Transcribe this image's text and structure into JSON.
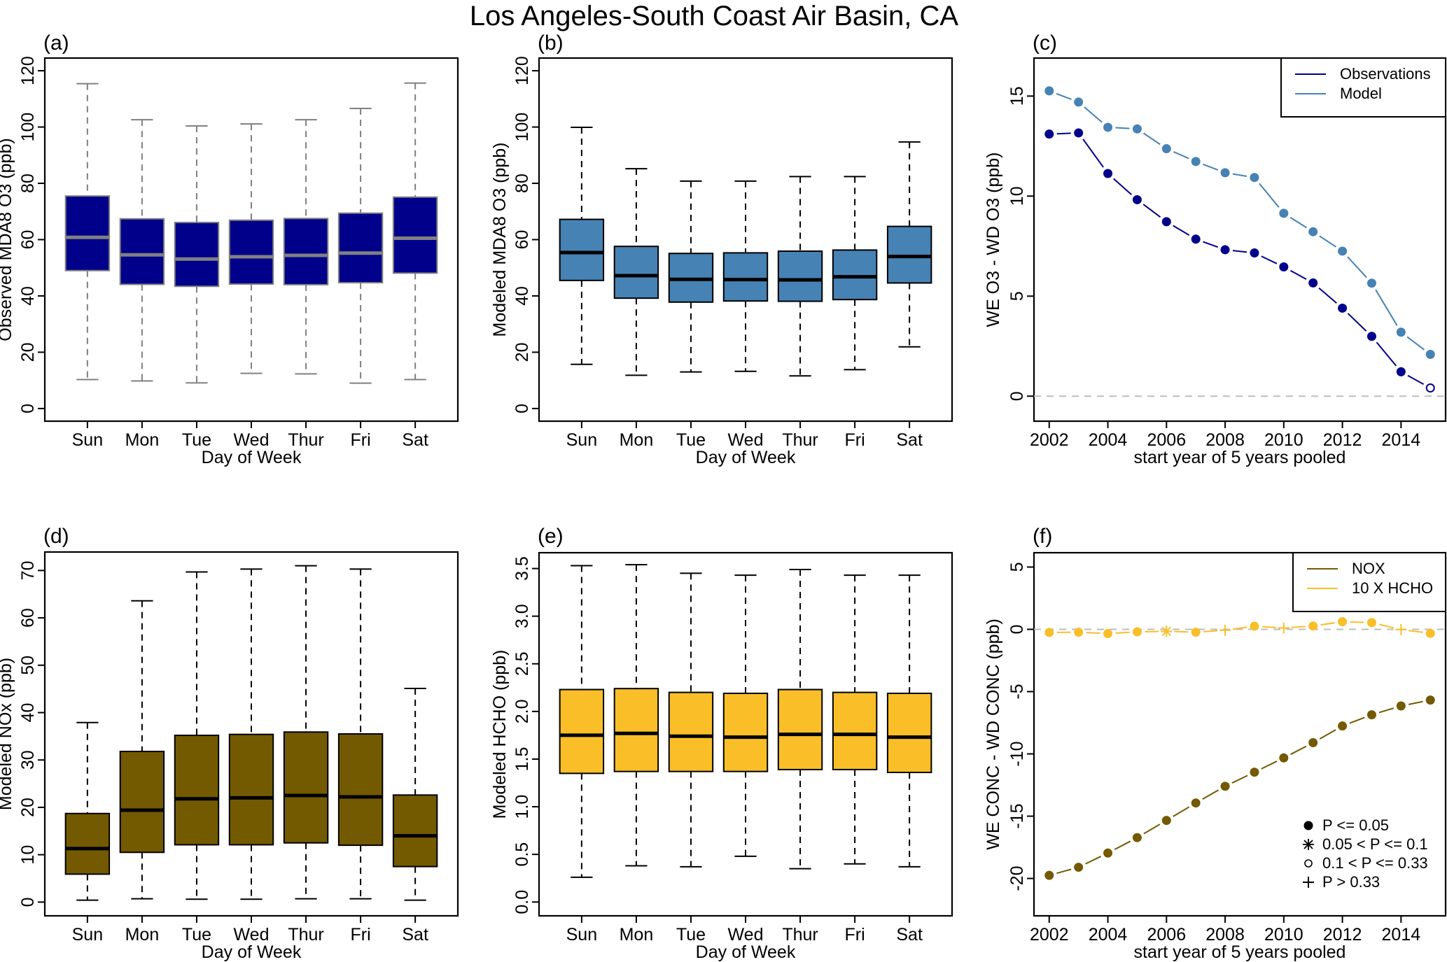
{
  "figure": {
    "title": "Los Angeles-South Coast Air Basin, CA"
  },
  "chart_data": [
    {
      "panel": "(a)",
      "type": "box",
      "title": "",
      "xlabel": "Day of Week",
      "ylabel": "Observed MDA8 O3 (ppb)",
      "categories": [
        "Sun",
        "Mon",
        "Tue",
        "Wed",
        "Thur",
        "Fri",
        "Sat"
      ],
      "yticks": [
        0,
        20,
        40,
        60,
        80,
        100,
        120
      ],
      "ylim": [
        -4.5,
        124.5
      ],
      "box_fill": "#00008B",
      "line_color": "#808080",
      "median_color": "#808080",
      "whisker_style": "dashed",
      "boxes": [
        {
          "whisker_low": 10.3,
          "q1": 49.0,
          "median": 60.8,
          "q3": 75.5,
          "whisker_high": 115.4
        },
        {
          "whisker_low": 9.8,
          "q1": 44.1,
          "median": 54.6,
          "q3": 67.4,
          "whisker_high": 102.6
        },
        {
          "whisker_low": 9.1,
          "q1": 43.4,
          "median": 53.1,
          "q3": 66.1,
          "whisker_high": 100.4
        },
        {
          "whisker_low": 12.5,
          "q1": 44.2,
          "median": 53.9,
          "q3": 66.9,
          "whisker_high": 101.1
        },
        {
          "whisker_low": 12.3,
          "q1": 44.0,
          "median": 54.4,
          "q3": 67.5,
          "whisker_high": 102.6
        },
        {
          "whisker_low": 9.0,
          "q1": 44.7,
          "median": 55.2,
          "q3": 69.4,
          "whisker_high": 106.6
        },
        {
          "whisker_low": 10.3,
          "q1": 48.1,
          "median": 60.5,
          "q3": 75.1,
          "whisker_high": 115.6
        }
      ]
    },
    {
      "panel": "(b)",
      "type": "box",
      "title": "",
      "xlabel": "Day of Week",
      "ylabel": "Modeled MDA8 O3 (ppb)",
      "categories": [
        "Sun",
        "Mon",
        "Tue",
        "Wed",
        "Thur",
        "Fri",
        "Sat"
      ],
      "yticks": [
        0,
        20,
        40,
        60,
        80,
        100,
        120
      ],
      "ylim": [
        -4.5,
        124.5
      ],
      "box_fill": "#4682B4",
      "line_color": "#000000",
      "median_color": "#000000",
      "whisker_style": "dashed",
      "boxes": [
        {
          "whisker_low": 15.7,
          "q1": 45.5,
          "median": 55.4,
          "q3": 67.2,
          "whisker_high": 99.9
        },
        {
          "whisker_low": 11.8,
          "q1": 39.2,
          "median": 47.2,
          "q3": 57.6,
          "whisker_high": 85.2
        },
        {
          "whisker_low": 13.0,
          "q1": 37.8,
          "median": 45.9,
          "q3": 55.1,
          "whisker_high": 80.8
        },
        {
          "whisker_low": 13.2,
          "q1": 38.2,
          "median": 45.8,
          "q3": 55.3,
          "whisker_high": 80.8
        },
        {
          "whisker_low": 11.6,
          "q1": 38.1,
          "median": 45.7,
          "q3": 55.9,
          "whisker_high": 82.4
        },
        {
          "whisker_low": 13.8,
          "q1": 38.7,
          "median": 46.8,
          "q3": 56.3,
          "whisker_high": 82.4
        },
        {
          "whisker_low": 21.9,
          "q1": 44.6,
          "median": 54.0,
          "q3": 64.7,
          "whisker_high": 94.7
        }
      ]
    },
    {
      "panel": "(c)",
      "type": "line",
      "title": "",
      "xlabel": "start year of 5 years pooled",
      "ylabel": "WE O3 - WD O3 (ppb)",
      "x": [
        2002,
        2003,
        2004,
        2005,
        2006,
        2007,
        2008,
        2009,
        2010,
        2011,
        2012,
        2013,
        2014,
        2015
      ],
      "xticks": [
        2002,
        2004,
        2006,
        2008,
        2010,
        2012,
        2014
      ],
      "yticks": [
        0,
        5,
        10,
        15
      ],
      "xlim": [
        2001.48,
        2015.52
      ],
      "ylim": [
        -1.25,
        16.9
      ],
      "reference_line": 0,
      "legend": {
        "position": "top-right",
        "entries": [
          "Observations",
          "Model"
        ]
      },
      "series": [
        {
          "name": "Observations",
          "color": "#00008B",
          "values": [
            13.1,
            13.16,
            11.13,
            9.82,
            8.72,
            7.85,
            7.32,
            7.16,
            6.46,
            5.66,
            4.4,
            2.99,
            1.22,
            0.41
          ],
          "markers": [
            "filled",
            "filled",
            "filled",
            "filled",
            "filled",
            "filled",
            "filled",
            "filled",
            "filled",
            "filled",
            "filled",
            "filled",
            "filled",
            "open"
          ]
        },
        {
          "name": "Model",
          "color": "#4682B4",
          "values": [
            15.26,
            14.7,
            13.44,
            13.36,
            12.37,
            11.73,
            11.17,
            10.93,
            9.14,
            8.22,
            7.25,
            5.65,
            3.2,
            2.09
          ],
          "markers": [
            "filled",
            "filled",
            "filled",
            "filled",
            "filled",
            "filled",
            "filled",
            "filled",
            "filled",
            "filled",
            "filled",
            "filled",
            "filled",
            "filled"
          ]
        }
      ]
    },
    {
      "panel": "(d)",
      "type": "box",
      "title": "",
      "xlabel": "Day of Week",
      "ylabel": "Modeled NOx (ppb)",
      "categories": [
        "Sun",
        "Mon",
        "Tue",
        "Wed",
        "Thur",
        "Fri",
        "Sat"
      ],
      "yticks": [
        0,
        10,
        20,
        30,
        40,
        50,
        60,
        70
      ],
      "ylim": [
        -2.9,
        73.9
      ],
      "box_fill": "#735A00",
      "line_color": "#000000",
      "median_color": "#000000",
      "whisker_style": "dashed",
      "boxes": [
        {
          "whisker_low": 0.4,
          "q1": 5.9,
          "median": 11.3,
          "q3": 18.7,
          "whisker_high": 37.9
        },
        {
          "whisker_low": 0.7,
          "q1": 10.5,
          "median": 19.4,
          "q3": 31.8,
          "whisker_high": 63.6
        },
        {
          "whisker_low": 0.6,
          "q1": 12.1,
          "median": 21.8,
          "q3": 35.2,
          "whisker_high": 69.7
        },
        {
          "whisker_low": 0.6,
          "q1": 12.1,
          "median": 22.0,
          "q3": 35.4,
          "whisker_high": 70.3
        },
        {
          "whisker_low": 0.7,
          "q1": 12.5,
          "median": 22.5,
          "q3": 35.9,
          "whisker_high": 71.0
        },
        {
          "whisker_low": 0.7,
          "q1": 12.0,
          "median": 22.2,
          "q3": 35.5,
          "whisker_high": 70.3
        },
        {
          "whisker_low": 0.4,
          "q1": 7.5,
          "median": 14.0,
          "q3": 22.6,
          "whisker_high": 45.1
        }
      ]
    },
    {
      "panel": "(e)",
      "type": "box",
      "title": "",
      "xlabel": "Day of Week",
      "ylabel": "Modeled HCHO (ppb)",
      "categories": [
        "Sun",
        "Mon",
        "Tue",
        "Wed",
        "Thur",
        "Fri",
        "Sat"
      ],
      "yticks": [
        "0.0",
        "0.5",
        "1.0",
        "1.5",
        "2.0",
        "2.5",
        "3.0",
        "3.5"
      ],
      "ylim": [
        -0.145,
        3.666
      ],
      "box_fill": "#F9BE28",
      "line_color": "#000000",
      "median_color": "#000000",
      "whisker_style": "dashed",
      "boxes": [
        {
          "whisker_low": 0.26,
          "q1": 1.35,
          "median": 1.75,
          "q3": 2.23,
          "whisker_high": 3.53
        },
        {
          "whisker_low": 0.38,
          "q1": 1.37,
          "median": 1.77,
          "q3": 2.24,
          "whisker_high": 3.54
        },
        {
          "whisker_low": 0.37,
          "q1": 1.37,
          "median": 1.74,
          "q3": 2.2,
          "whisker_high": 3.45
        },
        {
          "whisker_low": 0.48,
          "q1": 1.37,
          "median": 1.73,
          "q3": 2.19,
          "whisker_high": 3.43
        },
        {
          "whisker_low": 0.35,
          "q1": 1.39,
          "median": 1.76,
          "q3": 2.23,
          "whisker_high": 3.49
        },
        {
          "whisker_low": 0.4,
          "q1": 1.39,
          "median": 1.76,
          "q3": 2.2,
          "whisker_high": 3.43
        },
        {
          "whisker_low": 0.37,
          "q1": 1.36,
          "median": 1.73,
          "q3": 2.19,
          "whisker_high": 3.43
        }
      ]
    },
    {
      "panel": "(f)",
      "type": "line",
      "title": "",
      "xlabel": "start year of 5 years pooled",
      "ylabel": "WE CONC - WD CONC (ppb)",
      "x": [
        2002,
        2003,
        2004,
        2005,
        2006,
        2007,
        2008,
        2009,
        2010,
        2011,
        2012,
        2013,
        2014,
        2015
      ],
      "xticks": [
        2002,
        2004,
        2006,
        2008,
        2010,
        2012,
        2014
      ],
      "yticks": [
        -20,
        -15,
        -10,
        -5,
        0,
        5
      ],
      "xlim": [
        2001.48,
        2015.52
      ],
      "ylim": [
        -23.0,
        6.15
      ],
      "reference_line": 0,
      "legend": {
        "position": "top-right",
        "entries": [
          "NOX",
          "10 X HCHO"
        ]
      },
      "marker_legend": {
        "position": "bottom-right",
        "entries": [
          {
            "marker": "filled",
            "label": "P <= 0.05"
          },
          {
            "marker": "asterisk",
            "label": "0.05 < P <= 0.1"
          },
          {
            "marker": "open",
            "label": "0.1 < P <= 0.33"
          },
          {
            "marker": "plus",
            "label": "P > 0.33"
          }
        ]
      },
      "series": [
        {
          "name": "NOX",
          "color": "#735A00",
          "values": [
            -19.75,
            -19.1,
            -17.96,
            -16.72,
            -15.34,
            -13.94,
            -12.6,
            -11.47,
            -10.32,
            -9.1,
            -7.76,
            -6.86,
            -6.15,
            -5.68
          ],
          "markers": [
            "filled",
            "filled",
            "filled",
            "filled",
            "filled",
            "filled",
            "filled",
            "filled",
            "filled",
            "filled",
            "filled",
            "filled",
            "filled",
            "filled"
          ]
        },
        {
          "name": "10 X HCHO",
          "color": "#F9BE28",
          "values": [
            -0.25,
            -0.23,
            -0.34,
            -0.2,
            -0.16,
            -0.23,
            -0.07,
            0.25,
            0.11,
            0.27,
            0.61,
            0.54,
            -0.02,
            -0.32
          ],
          "markers": [
            "filled",
            "filled",
            "filled",
            "filled",
            "asterisk",
            "filled",
            "plus",
            "filled",
            "plus",
            "filled",
            "filled",
            "filled",
            "plus",
            "filled"
          ]
        }
      ]
    }
  ]
}
